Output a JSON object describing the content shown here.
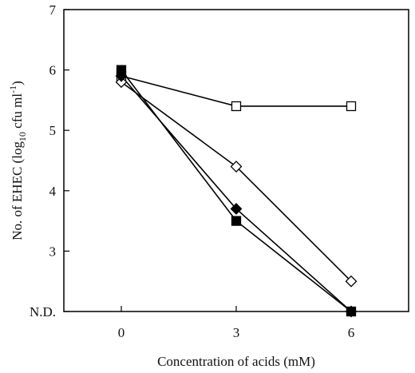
{
  "chart_data": {
    "type": "line",
    "x": [
      0,
      3,
      6
    ],
    "xlim": [
      -1.5,
      7.5
    ],
    "ylim": [
      2,
      7
    ],
    "x_ticks": [
      {
        "value": 0,
        "label": "0"
      },
      {
        "value": 3,
        "label": "3"
      },
      {
        "value": 6,
        "label": "6"
      }
    ],
    "y_ticks": [
      {
        "value": 2,
        "label": "N.D."
      },
      {
        "value": 3,
        "label": "3"
      },
      {
        "value": 4,
        "label": "4"
      },
      {
        "value": 5,
        "label": "5"
      },
      {
        "value": 6,
        "label": "6"
      },
      {
        "value": 7,
        "label": "7"
      }
    ],
    "xlabel": "Concentration of acids (mM)",
    "ylabel": {
      "prefix": "No. of EHEC (log",
      "sub": "10",
      "mid": " cfu ml",
      "sup": "-1",
      "suffix": ")"
    },
    "grid": false,
    "series": [
      {
        "marker": "square-open",
        "values": [
          5.9,
          5.4,
          5.4
        ]
      },
      {
        "marker": "diamond-open",
        "values": [
          5.8,
          4.4,
          2.5
        ]
      },
      {
        "marker": "diamond-filled",
        "values": [
          5.9,
          3.7,
          2.0
        ]
      },
      {
        "marker": "square-filled",
        "values": [
          6.0,
          3.5,
          2.0
        ]
      }
    ],
    "colors": {
      "line": "#000000",
      "open_fill": "#ffffff",
      "filled": "#000000"
    }
  }
}
